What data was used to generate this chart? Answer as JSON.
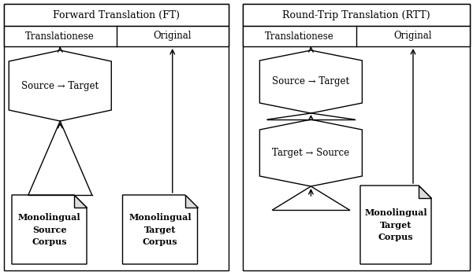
{
  "fig_width": 6.0,
  "fig_height": 3.46,
  "dpi": 100,
  "bg_color": "#ffffff",
  "border_color": "#000000",
  "ft_title": "Forward Translation (FT)",
  "rtt_title": "Round-Trip Translation (RTT)",
  "translationese_label": "Translationese",
  "original_label": "Original",
  "src_to_tgt_label": "Source → Target",
  "tgt_to_src_label": "Target → Source",
  "mono_src_label": "Monolingual\nSource\nCorpus",
  "mono_tgt_label": "Monolingual\nTarget\nCorpus"
}
